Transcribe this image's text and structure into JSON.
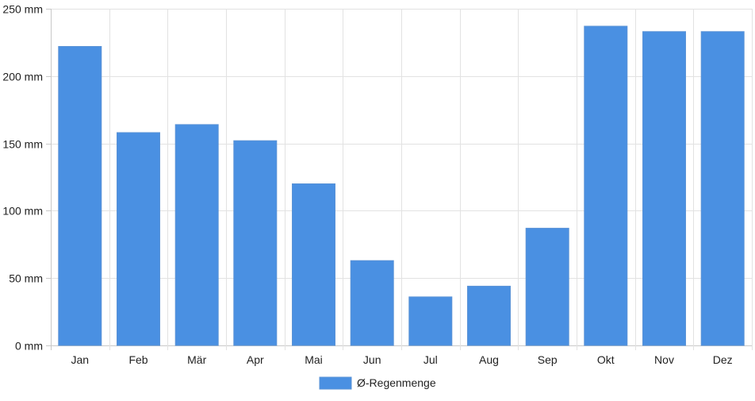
{
  "chart_data": {
    "type": "bar",
    "categories": [
      "Jan",
      "Feb",
      "Mär",
      "Apr",
      "Mai",
      "Jun",
      "Jul",
      "Aug",
      "Sep",
      "Okt",
      "Nov",
      "Dez"
    ],
    "series": [
      {
        "name": "Ø-Regenmenge",
        "values": [
          222,
          158,
          164,
          152,
          120,
          63,
          36,
          44,
          87,
          237,
          233,
          233
        ],
        "color": "#4a90e2"
      }
    ],
    "unit": "mm",
    "ylim": [
      0,
      250
    ],
    "yticks": [
      {
        "value": 0,
        "label": "0 mm"
      },
      {
        "value": 50,
        "label": "50 mm"
      },
      {
        "value": 100,
        "label": "100 mm"
      },
      {
        "value": 150,
        "label": "150 mm"
      },
      {
        "value": 200,
        "label": "200 mm"
      },
      {
        "value": 250,
        "label": "250 mm"
      }
    ],
    "title": "",
    "xlabel": "",
    "ylabel": "",
    "grid": true,
    "legend_position": "bottom-center"
  }
}
